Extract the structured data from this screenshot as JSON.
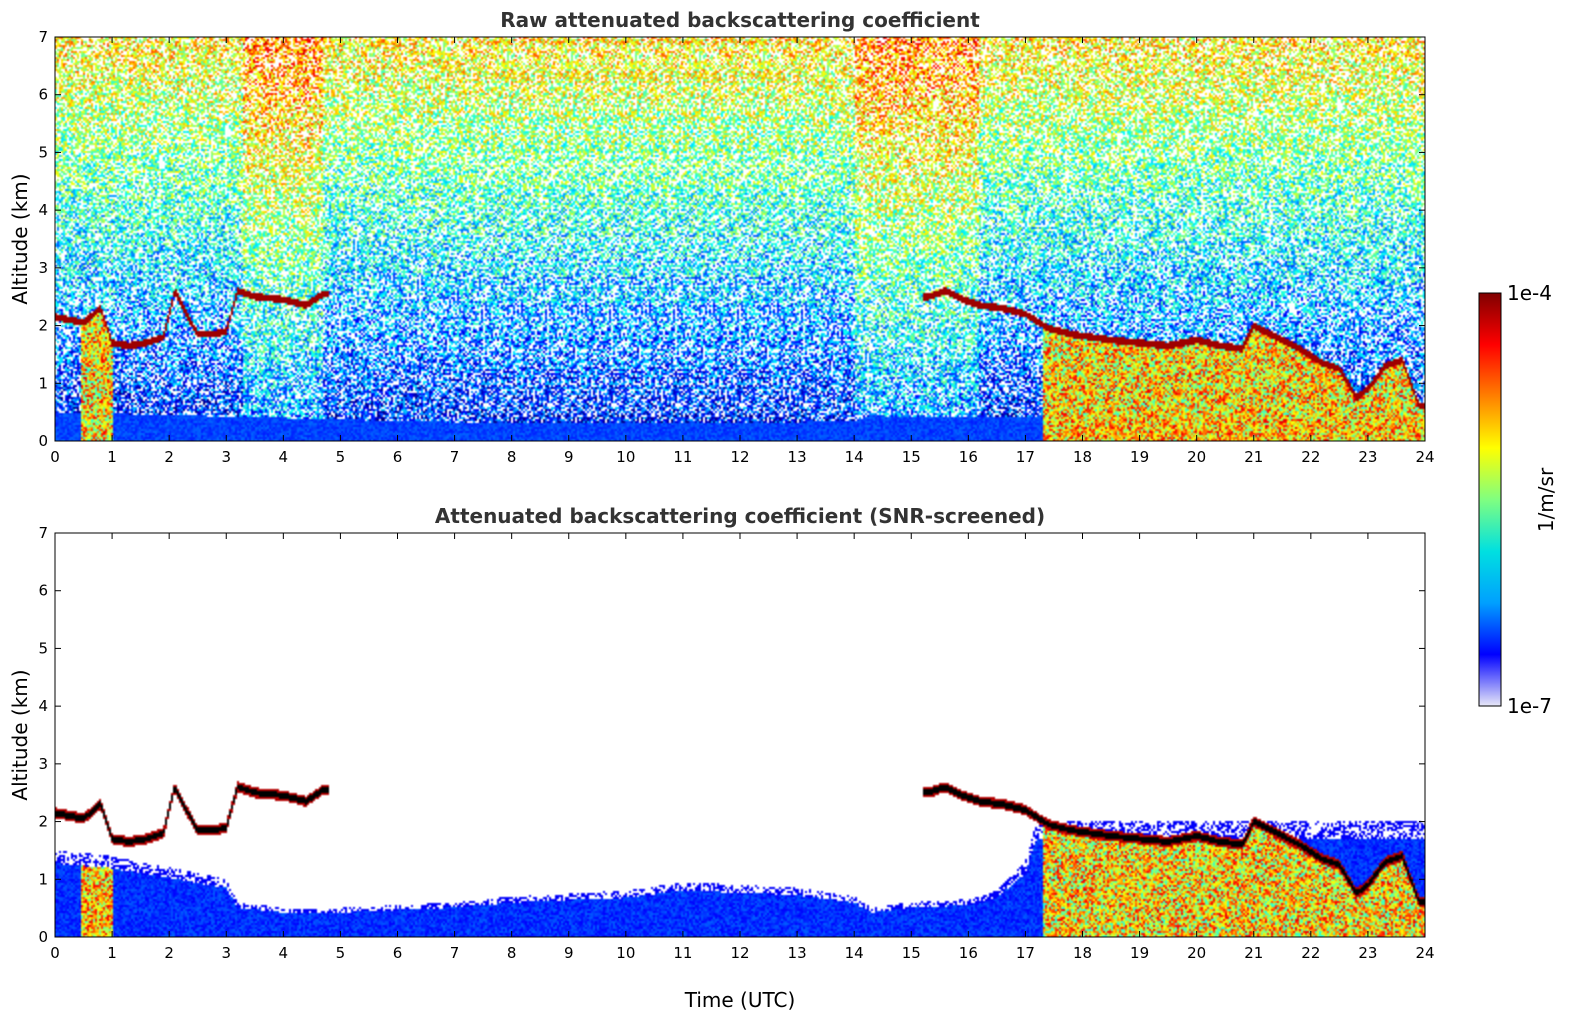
{
  "chart_data": [
    {
      "type": "heatmap",
      "title": "Raw attenuated backscattering coefficient",
      "xlabel": "",
      "ylabel": "Altitude (km)",
      "xlim": [
        0,
        24
      ],
      "ylim": [
        0,
        7
      ],
      "xticks": [
        "0",
        "1",
        "2",
        "3",
        "4",
        "5",
        "6",
        "7",
        "8",
        "9",
        "10",
        "11",
        "12",
        "13",
        "14",
        "15",
        "16",
        "17",
        "18",
        "19",
        "20",
        "21",
        "22",
        "23",
        "24"
      ],
      "yticks": [
        "0",
        "1",
        "2",
        "3",
        "4",
        "5",
        "6",
        "7"
      ],
      "screened": false,
      "cloud_base": {
        "time": [
          0,
          0.5,
          0.8,
          1.0,
          1.3,
          1.6,
          1.9,
          2.1,
          2.3,
          2.5,
          2.8,
          3.0,
          3.2,
          3.5,
          4.0,
          4.4,
          4.7,
          15.3,
          15.6,
          15.9,
          16.2,
          16.6,
          17.0,
          17.4,
          17.8,
          18.5,
          19.0,
          19.5,
          20.0,
          20.4,
          20.8,
          21.0,
          21.3,
          21.8,
          22.2,
          22.5,
          22.8,
          23.0,
          23.3,
          23.6,
          23.9
        ],
        "altitude": [
          2.15,
          2.05,
          2.3,
          1.7,
          1.65,
          1.7,
          1.8,
          2.6,
          2.2,
          1.85,
          1.85,
          1.9,
          2.6,
          2.5,
          2.45,
          2.35,
          2.55,
          2.5,
          2.6,
          2.45,
          2.35,
          2.3,
          2.2,
          1.95,
          1.85,
          1.75,
          1.7,
          1.65,
          1.75,
          1.65,
          1.6,
          2.0,
          1.85,
          1.6,
          1.35,
          1.25,
          0.75,
          0.9,
          1.3,
          1.4,
          0.6
        ]
      },
      "boundary_layer_top": {
        "time": [
          0,
          2,
          4,
          6,
          8,
          10,
          12,
          14,
          14.3,
          15,
          16,
          17,
          17.3,
          24
        ],
        "altitude": [
          0.5,
          0.45,
          0.4,
          0.35,
          0.3,
          0.3,
          0.3,
          0.35,
          0.45,
          0.4,
          0.4,
          0.4,
          0.45,
          0.45
        ]
      }
    },
    {
      "type": "heatmap",
      "title": "Attenuated backscattering coefficient (SNR-screened)",
      "xlabel": "Time (UTC)",
      "ylabel": "Altitude (km)",
      "xlim": [
        0,
        24
      ],
      "ylim": [
        0,
        7
      ],
      "xticks": [
        "0",
        "1",
        "2",
        "3",
        "4",
        "5",
        "6",
        "7",
        "8",
        "9",
        "10",
        "11",
        "12",
        "13",
        "14",
        "15",
        "16",
        "17",
        "18",
        "19",
        "20",
        "21",
        "22",
        "23",
        "24"
      ],
      "yticks": [
        "0",
        "1",
        "2",
        "3",
        "4",
        "5",
        "6",
        "7"
      ],
      "screened": true,
      "signal_top": {
        "time": [
          0,
          1,
          2,
          3,
          3.2,
          4,
          5,
          6,
          7,
          8,
          9,
          10,
          11,
          12,
          13,
          14,
          14.3,
          15,
          16,
          16.5,
          17,
          17.2
        ],
        "altitude": [
          1.5,
          1.4,
          1.2,
          1.0,
          0.6,
          0.5,
          0.5,
          0.55,
          0.6,
          0.7,
          0.75,
          0.8,
          0.95,
          0.9,
          0.85,
          0.7,
          0.5,
          0.6,
          0.65,
          0.8,
          1.3,
          2.0
        ]
      }
    }
  ],
  "colorbar": {
    "label": "1/m/sr",
    "min_label": "1e-7",
    "max_label": "1e-4",
    "colormap": "jet",
    "colors": [
      "#e8e8f8",
      "#0000ff",
      "#00a0ff",
      "#00e0e0",
      "#80ff80",
      "#ffff00",
      "#ff8000",
      "#ff0000",
      "#800000"
    ]
  }
}
